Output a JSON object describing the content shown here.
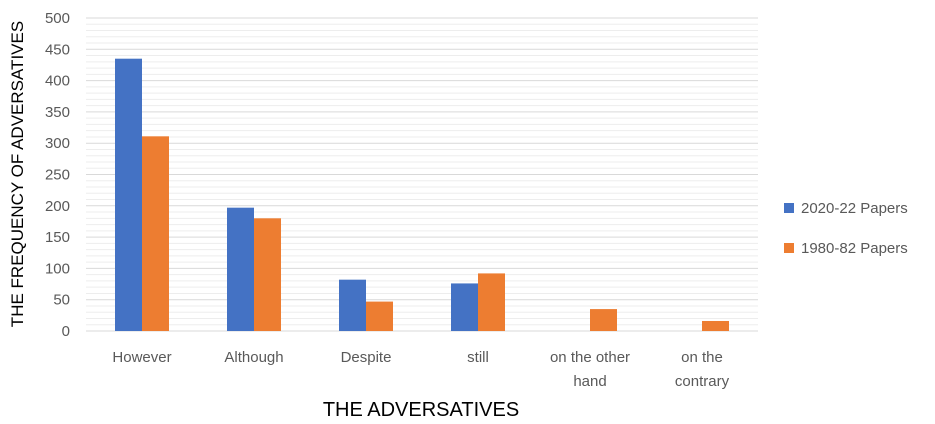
{
  "chart_data": {
    "type": "bar",
    "xlabel": "THE ADVERSATIVES",
    "ylabel": "THE FREQUENCY OF ADVERSATIVES",
    "ylim": [
      0,
      500
    ],
    "yticks": [
      0,
      50,
      100,
      150,
      200,
      250,
      300,
      350,
      400,
      450,
      500
    ],
    "grid": true,
    "legend_position": "right",
    "categories": [
      [
        "However"
      ],
      [
        "Although"
      ],
      [
        "Despite"
      ],
      [
        "still"
      ],
      [
        "on the other",
        "hand"
      ],
      [
        "on the",
        "contrary"
      ]
    ],
    "series": [
      {
        "name": "2020-22 Papers",
        "color": "#4472C4",
        "values": [
          435,
          197,
          82,
          76,
          0,
          0
        ]
      },
      {
        "name": "1980-82 Papers",
        "color": "#ED7D31",
        "values": [
          311,
          180,
          47,
          92,
          35,
          16
        ]
      }
    ]
  }
}
